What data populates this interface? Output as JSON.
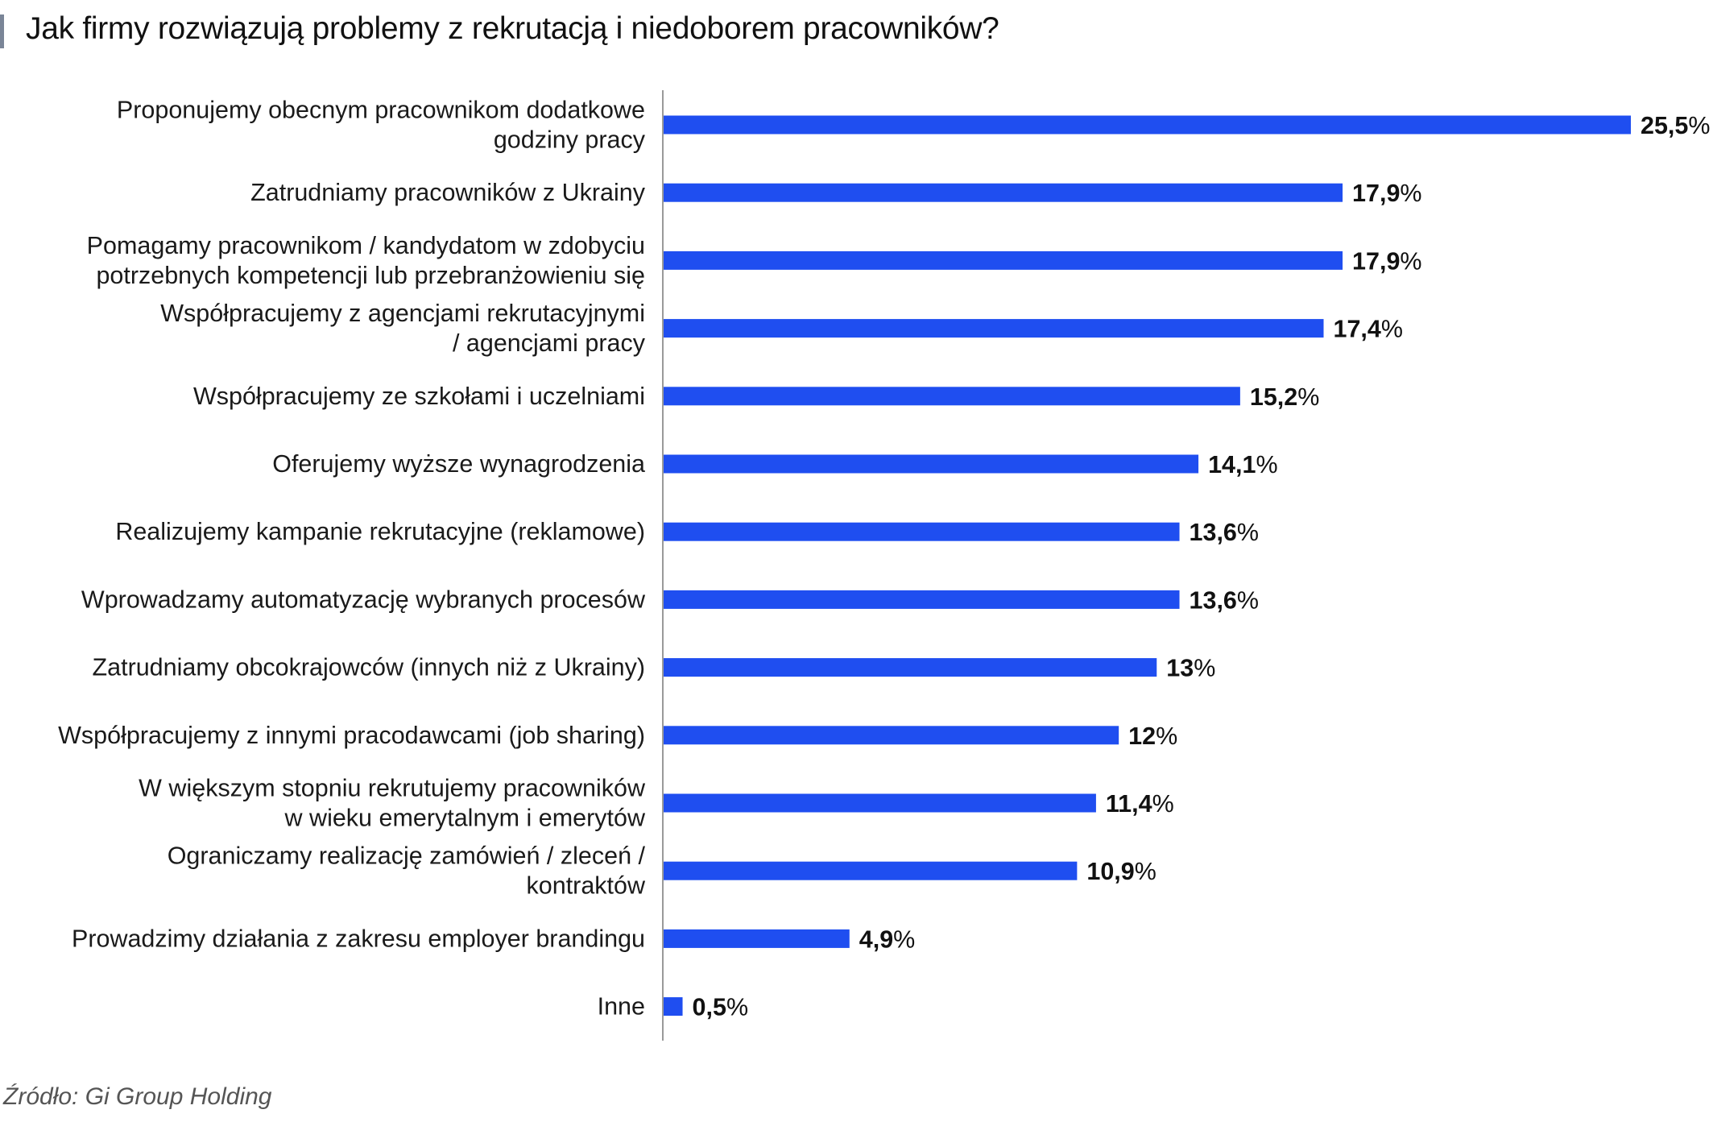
{
  "title": "Jak firmy rozwiązują problemy z rekrutacją i niedoborem pracowników?",
  "source": "Źródło: Gi Group Holding",
  "colors": {
    "bar": "#1f4ef0",
    "axis": "#9a9a9a",
    "text": "#1a1a1a",
    "title_accent": "#7a8597"
  },
  "chart_data": {
    "type": "bar",
    "orientation": "horizontal",
    "title": "Jak firmy rozwiązują problemy z rekrutacją i niedoborem pracowników?",
    "xlabel": "",
    "ylabel": "",
    "unit": "%",
    "xlim": [
      0,
      25.5
    ],
    "grid": false,
    "legend": "none",
    "categories": [
      [
        "Proponujemy obecnym pracownikom dodatkowe",
        "godziny pracy"
      ],
      [
        "Zatrudniamy pracowników z Ukrainy"
      ],
      [
        "Pomagamy pracownikom / kandydatom w zdobyciu",
        "potrzebnych kompetencji lub przebranżowieniu się"
      ],
      [
        "Współpracujemy z agencjami rekrutacyjnymi",
        "/ agencjami pracy"
      ],
      [
        "Współpracujemy ze szkołami i uczelniami"
      ],
      [
        "Oferujemy wyższe wynagrodzenia"
      ],
      [
        "Realizujemy kampanie rekrutacyjne (reklamowe)"
      ],
      [
        "Wprowadzamy automatyzację wybranych procesów"
      ],
      [
        "Zatrudniamy obcokrajowców (innych niż z Ukrainy)"
      ],
      [
        "Współpracujemy z innymi pracodawcami (job sharing)"
      ],
      [
        "W większym stopniu rekrutujemy pracowników",
        "w wieku emerytalnym i emerytów"
      ],
      [
        "Ograniczamy realizację zamówień / zleceń /",
        "kontraktów"
      ],
      [
        "Prowadzimy działania z zakresu employer brandingu"
      ],
      [
        "Inne"
      ]
    ],
    "values": [
      25.5,
      17.9,
      17.9,
      17.4,
      15.2,
      14.1,
      13.6,
      13.6,
      13,
      12,
      11.4,
      10.9,
      4.9,
      0.5
    ],
    "value_labels": [
      "25,5",
      "17,9",
      "17,9",
      "17,4",
      "15,2",
      "14,1",
      "13,6",
      "13,6",
      "13",
      "12",
      "11,4",
      "10,9",
      "4,9",
      "0,5"
    ]
  }
}
